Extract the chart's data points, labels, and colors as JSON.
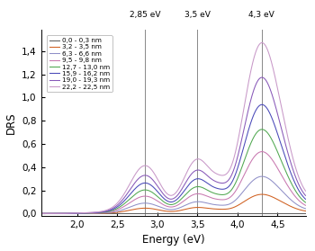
{
  "xlabel": "Energy (eV)",
  "ylabel": "DRS",
  "xlim": [
    1.55,
    4.85
  ],
  "ylim": [
    -0.02,
    1.58
  ],
  "xticks": [
    2.0,
    2.5,
    3.0,
    3.5,
    4.0,
    4.5
  ],
  "yticks": [
    0.0,
    0.2,
    0.4,
    0.6,
    0.8,
    1.0,
    1.2,
    1.4
  ],
  "vlines": [
    2.85,
    3.5,
    4.3
  ],
  "vline_labels": [
    "2,85 eV",
    "3,5 eV",
    "4,3 eV"
  ],
  "legend_labels": [
    "0,0 - 0,3 nm",
    "3,2 - 3,5 nm",
    "6,3 - 6,6 nm",
    "9,5 - 9,8 nm",
    "12,7 - 13,0 nm",
    "15,9 - 16,2 nm",
    "19,0 - 19,3 nm",
    "22,2 - 22,5 nm"
  ],
  "colors": [
    "#606060",
    "#d06020",
    "#9090c8",
    "#c878b0",
    "#50a850",
    "#4848b8",
    "#8858b8",
    "#c898c8"
  ],
  "amplitudes": [
    0.0,
    0.155,
    0.3,
    0.5,
    0.68,
    0.88,
    1.1,
    1.38
  ]
}
